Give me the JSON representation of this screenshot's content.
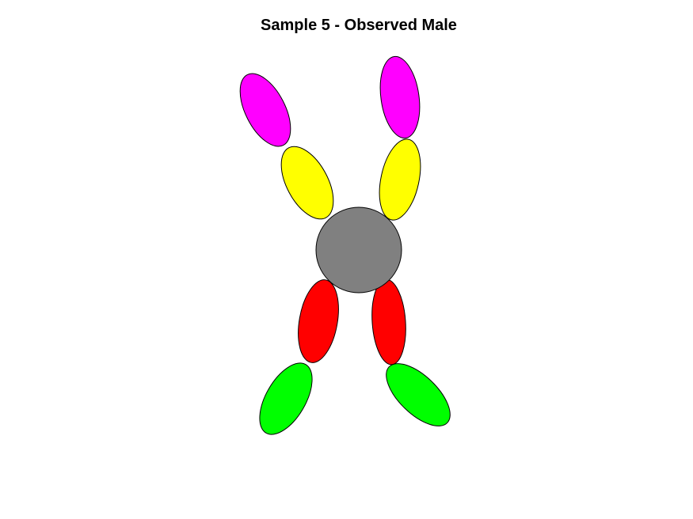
{
  "title": "Sample 5 - Observed Male",
  "figure": {
    "background": "#ffffff",
    "outline_color": "#000000",
    "colors": {
      "upper_arm": "#ffff00",
      "forearm": "#ff00ff",
      "thigh": "#ff0000",
      "shin": "#00ff00",
      "body": "#808080"
    }
  }
}
